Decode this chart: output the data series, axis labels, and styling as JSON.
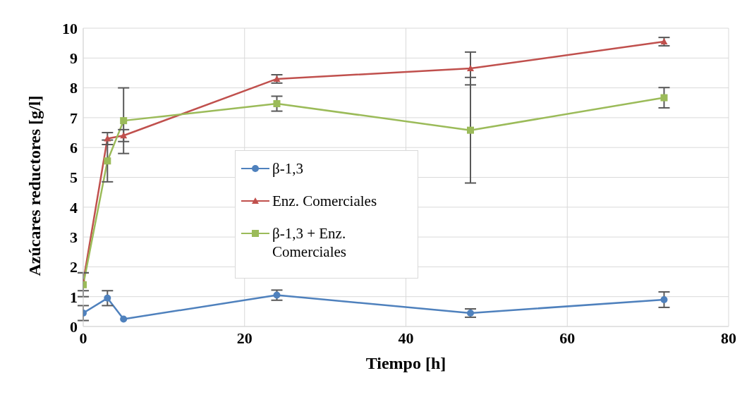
{
  "chart_data": {
    "type": "line",
    "xlabel": "Tiempo [h]",
    "ylabel": "Azúcares reductores [g/l]",
    "x": [
      0,
      3,
      5,
      24,
      48,
      72
    ],
    "xlim": [
      0,
      80
    ],
    "xticks": [
      0,
      20,
      40,
      60,
      80
    ],
    "ylim": [
      0,
      10
    ],
    "yticks": [
      0,
      1,
      2,
      3,
      4,
      5,
      6,
      7,
      8,
      9,
      10
    ],
    "grid": true,
    "legend": "left",
    "series": [
      {
        "name": "β-1,3",
        "color": "#4f81bd",
        "marker": "circle",
        "values": [
          0.45,
          0.95,
          0.25,
          1.05,
          0.45,
          0.9
        ],
        "errors": [
          0.25,
          0.25,
          null,
          0.17,
          0.14,
          0.26
        ]
      },
      {
        "name": "Enz. Comerciales",
        "color": "#c0504d",
        "marker": "triangle",
        "values": [
          1.5,
          6.3,
          6.4,
          8.3,
          8.65,
          9.55
        ],
        "errors": [
          0.3,
          0.2,
          0.2,
          0.14,
          0.55,
          0.14
        ]
      },
      {
        "name": "β-1,3 + Enz. Comerciales",
        "color": "#9bbb59",
        "marker": "square",
        "values": [
          1.4,
          5.55,
          6.9,
          7.47,
          6.58,
          7.67
        ],
        "errors": [
          0.4,
          0.7,
          1.1,
          0.25,
          1.77,
          0.34
        ]
      }
    ]
  }
}
